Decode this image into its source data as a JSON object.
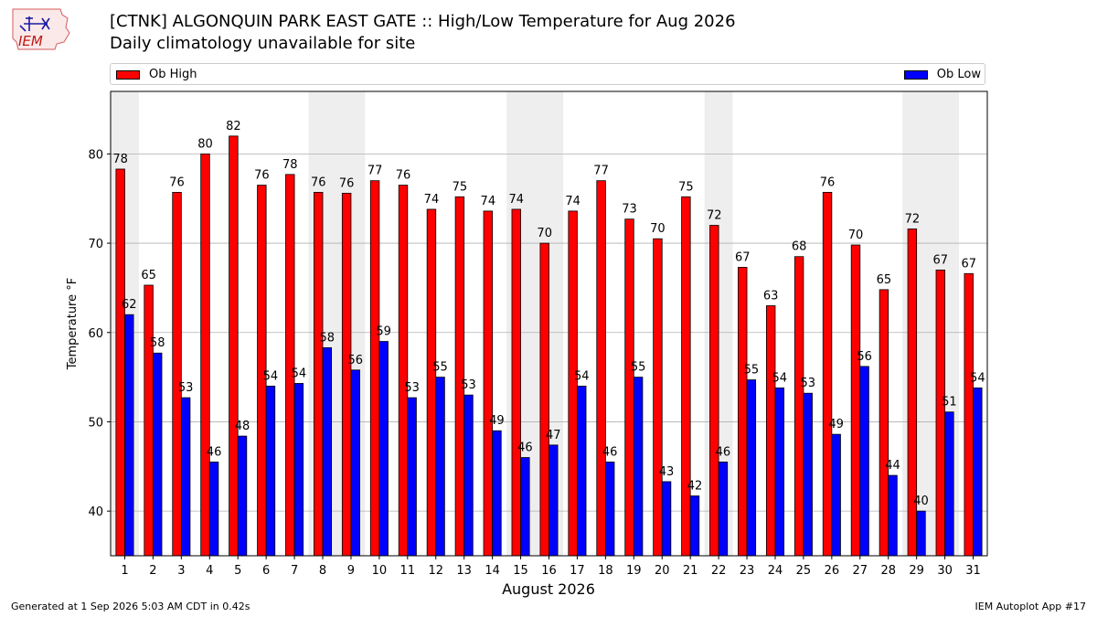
{
  "header": {
    "logo_text": "IEM",
    "title": "[CTNK] ALGONQUIN PARK EAST GATE :: High/Low Temperature for Aug 2026",
    "subtitle": "Daily climatology unavailable for site"
  },
  "legend": {
    "high_label": "Ob High",
    "low_label": "Ob Low"
  },
  "footer": {
    "generated": "Generated at 1 Sep 2026 5:03 AM CDT in 0.42s",
    "app": "IEM Autoplot App #17"
  },
  "chart_data": {
    "type": "bar",
    "title": "[CTNK] ALGONQUIN PARK EAST GATE :: High/Low Temperature for Aug 2026",
    "subtitle": "Daily climatology unavailable for site",
    "xlabel": "August 2026",
    "ylabel": "Temperature °F",
    "ylim": [
      35,
      87
    ],
    "yticks": [
      40,
      50,
      60,
      70,
      80
    ],
    "grid": true,
    "legend_placement": "top",
    "categories": [
      "1",
      "2",
      "3",
      "4",
      "5",
      "6",
      "7",
      "8",
      "9",
      "10",
      "11",
      "12",
      "13",
      "14",
      "15",
      "16",
      "17",
      "18",
      "19",
      "20",
      "21",
      "22",
      "23",
      "24",
      "25",
      "26",
      "27",
      "28",
      "29",
      "30",
      "31"
    ],
    "weekend_shaded_days": [
      1,
      8,
      9,
      15,
      16,
      22,
      29,
      30
    ],
    "series": [
      {
        "name": "Ob High",
        "color": "#ff0000",
        "values": [
          78.3,
          65.3,
          75.7,
          80.0,
          82.0,
          76.5,
          77.7,
          75.7,
          75.6,
          77.0,
          76.5,
          73.8,
          75.2,
          73.6,
          73.8,
          70.0,
          73.6,
          77.0,
          72.7,
          70.5,
          75.2,
          72.0,
          67.3,
          63.0,
          68.5,
          75.7,
          69.8,
          64.8,
          71.6,
          67.0,
          66.6
        ],
        "labels": [
          "78",
          "65",
          "76",
          "80",
          "82",
          "76",
          "78",
          "76",
          "76",
          "77",
          "76",
          "74",
          "75",
          "74",
          "74",
          "70",
          "74",
          "77",
          "73",
          "70",
          "75",
          "72",
          "67",
          "63",
          "68",
          "76",
          "70",
          "65",
          "72",
          "67",
          "67"
        ]
      },
      {
        "name": "Ob Low",
        "color": "#0000ff",
        "values": [
          62.0,
          57.7,
          52.7,
          45.5,
          48.4,
          54.0,
          54.3,
          58.3,
          55.8,
          59.0,
          52.7,
          55.0,
          53.0,
          49.0,
          46.0,
          47.4,
          54.0,
          45.5,
          55.0,
          43.3,
          41.7,
          45.5,
          54.7,
          53.8,
          53.2,
          48.6,
          56.2,
          44.0,
          40.0,
          51.1,
          53.8
        ],
        "labels": [
          "62",
          "58",
          "53",
          "46",
          "48",
          "54",
          "54",
          "58",
          "56",
          "59",
          "53",
          "55",
          "53",
          "49",
          "46",
          "47",
          "54",
          "46",
          "55",
          "43",
          "42",
          "46",
          "55",
          "54",
          "53",
          "49",
          "56",
          "44",
          "40",
          "51",
          "54"
        ]
      }
    ]
  }
}
